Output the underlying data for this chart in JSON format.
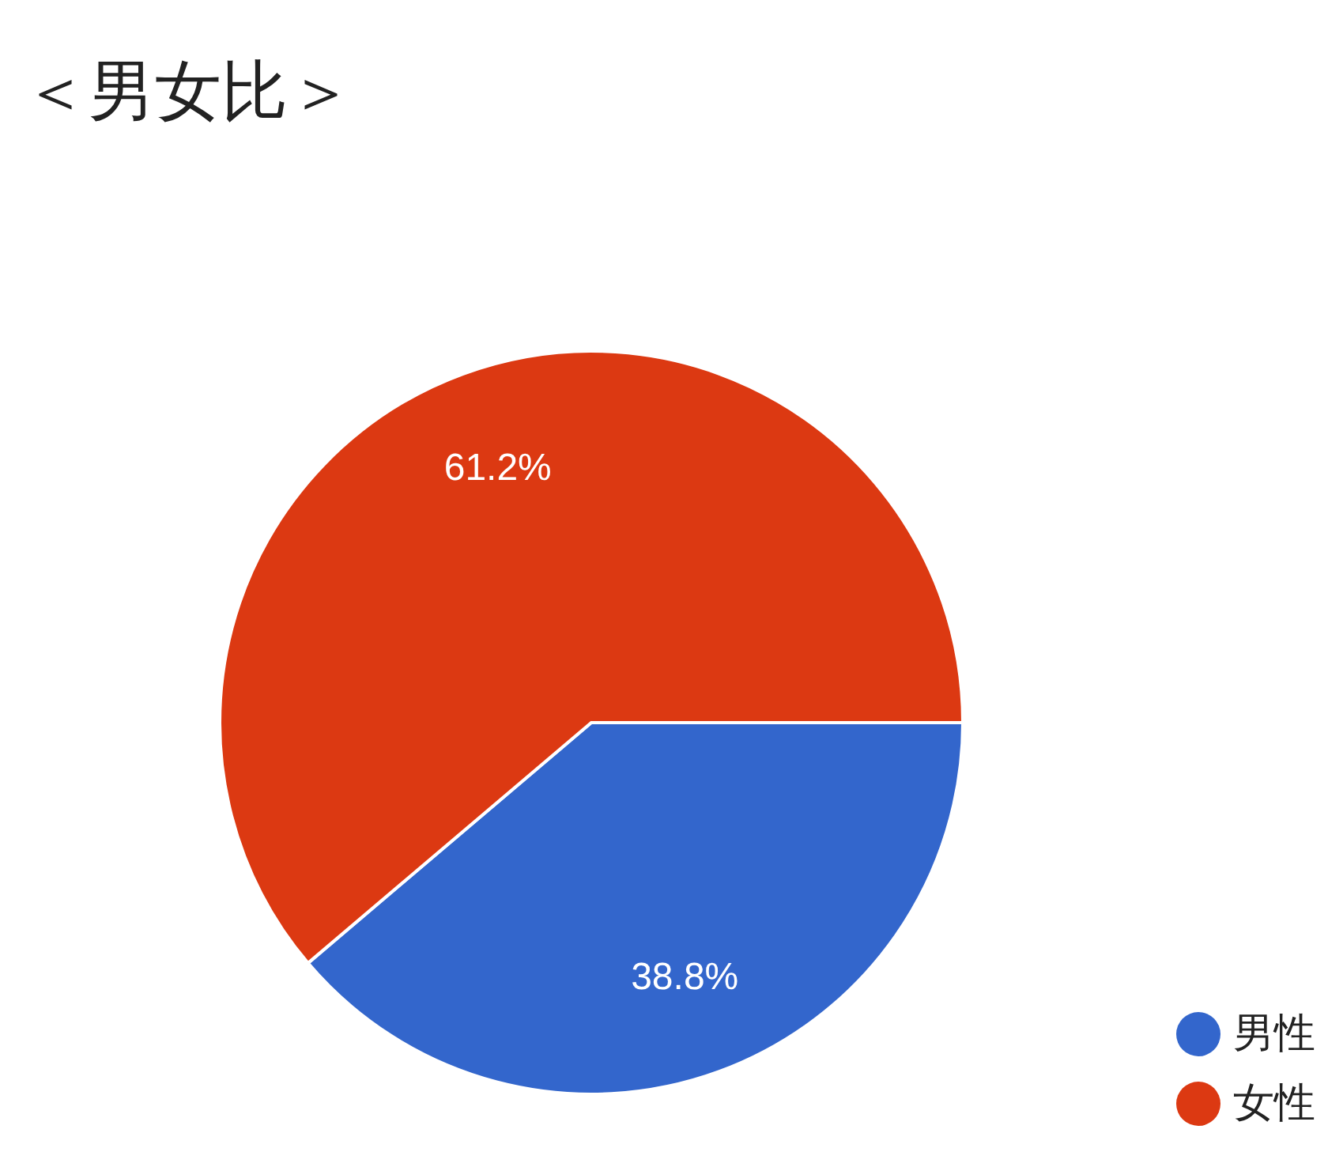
{
  "chart_data": {
    "type": "pie",
    "title": "＜男女比＞",
    "categories": [
      "男性",
      "女性"
    ],
    "values": [
      38.8,
      61.2
    ],
    "colors": [
      "#3366cc",
      "#dc3912"
    ],
    "value_labels": [
      "38.8%",
      "61.2%"
    ],
    "legend": "bottom right"
  }
}
